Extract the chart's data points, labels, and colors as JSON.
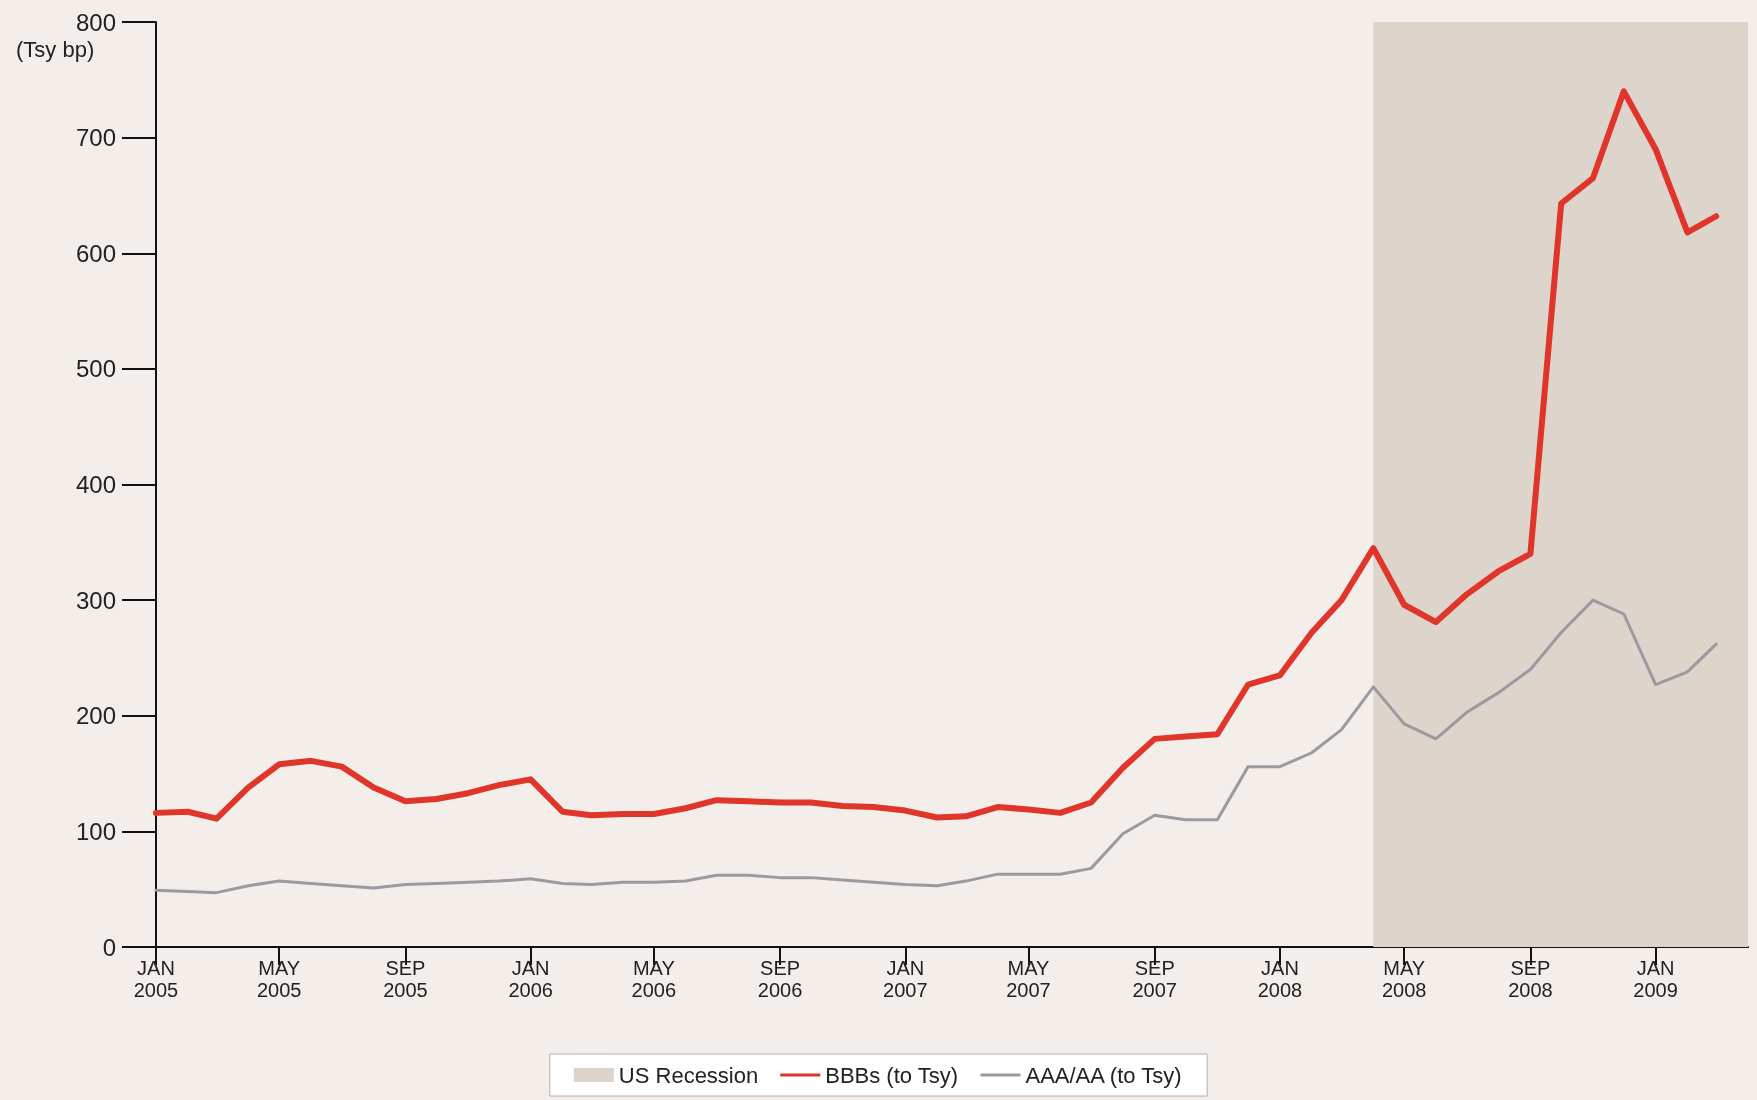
{
  "chart_data": {
    "type": "line",
    "ylabel": "(Tsy bp)",
    "x": [
      "2005-01",
      "2005-02",
      "2005-03",
      "2005-04",
      "2005-05",
      "2005-06",
      "2005-07",
      "2005-08",
      "2005-09",
      "2005-10",
      "2005-11",
      "2005-12",
      "2006-01",
      "2006-02",
      "2006-03",
      "2006-04",
      "2006-05",
      "2006-06",
      "2006-07",
      "2006-08",
      "2006-09",
      "2006-10",
      "2006-11",
      "2006-12",
      "2007-01",
      "2007-02",
      "2007-03",
      "2007-04",
      "2007-05",
      "2007-06",
      "2007-07",
      "2007-08",
      "2007-09",
      "2007-10",
      "2007-11",
      "2007-12",
      "2008-01",
      "2008-02",
      "2008-03",
      "2008-04",
      "2008-05",
      "2008-06",
      "2008-07",
      "2008-08",
      "2008-09",
      "2008-10",
      "2008-11",
      "2008-12",
      "2009-01",
      "2009-02",
      "2009-03"
    ],
    "series": [
      {
        "name": "BBBs (to Tsy)",
        "color": "#e0352b",
        "values": [
          116,
          117,
          111,
          138,
          158,
          161,
          156,
          138,
          126,
          128,
          133,
          140,
          145,
          117,
          114,
          115,
          115,
          120,
          127,
          126,
          125,
          125,
          122,
          121,
          118,
          112,
          113,
          121,
          119,
          116,
          125,
          155,
          180,
          182,
          184,
          227,
          235,
          272,
          300,
          345,
          296,
          281,
          305,
          325,
          340,
          643,
          665,
          740,
          690,
          618,
          632
        ]
      },
      {
        "name": "AAA/AA (to Tsy)",
        "color": "#9a9aa0",
        "values": [
          49,
          48,
          47,
          53,
          57,
          55,
          53,
          51,
          54,
          55,
          56,
          57,
          59,
          55,
          54,
          56,
          56,
          57,
          62,
          62,
          60,
          60,
          58,
          56,
          54,
          53,
          57,
          63,
          63,
          63,
          68,
          98,
          114,
          110,
          110,
          156,
          156,
          168,
          188,
          225,
          193,
          180,
          203,
          220,
          240,
          272,
          300,
          288,
          227,
          238,
          262
        ]
      }
    ],
    "bands": [
      {
        "axis": "x",
        "from": "2008-04",
        "to": "2009-04",
        "label": "US Recession",
        "color": "#ddd5cb"
      }
    ],
    "xlim": [
      "2005-01",
      "2009-04"
    ],
    "xticks": [
      {
        "value": "2005-01",
        "label": "JAN\n2005"
      },
      {
        "value": "2005-05",
        "label": "MAY\n2005"
      },
      {
        "value": "2005-09",
        "label": "SEP\n2005"
      },
      {
        "value": "2006-01",
        "label": "JAN\n2006"
      },
      {
        "value": "2006-05",
        "label": "MAY\n2006"
      },
      {
        "value": "2006-09",
        "label": "SEP\n2006"
      },
      {
        "value": "2007-01",
        "label": "JAN\n2007"
      },
      {
        "value": "2007-05",
        "label": "MAY\n2007"
      },
      {
        "value": "2007-09",
        "label": "SEP\n2007"
      },
      {
        "value": "2008-01",
        "label": "JAN\n2008"
      },
      {
        "value": "2008-05",
        "label": "MAY\n2008"
      },
      {
        "value": "2008-09",
        "label": "SEP\n2008"
      },
      {
        "value": "2009-01",
        "label": "JAN\n2009"
      }
    ],
    "ylim": [
      0,
      800
    ],
    "yticks": [
      0,
      100,
      200,
      300,
      400,
      500,
      600,
      700,
      800
    ],
    "grid": false,
    "legend": "bottom",
    "marker": "none",
    "line_style": "solid"
  }
}
